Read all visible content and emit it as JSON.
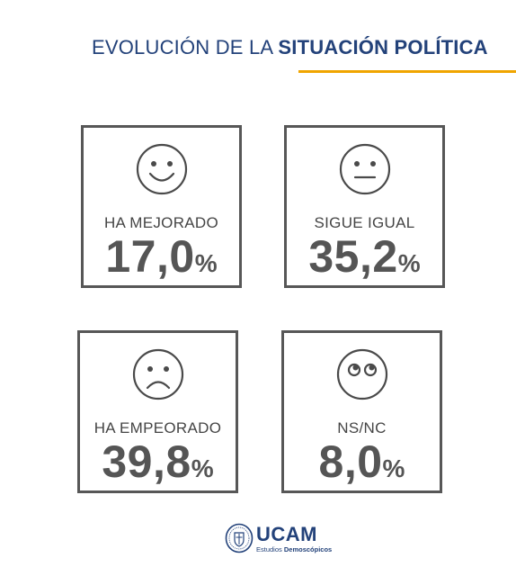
{
  "header": {
    "title_regular": "EVOLUCIÓN  DE LA ",
    "title_bold": "SITUACIÓN POLÍTICA"
  },
  "colors": {
    "title": "#23427a",
    "accent_rule": "#f0a500",
    "card_border": "#575757",
    "text": "#555555"
  },
  "chart_data": {
    "type": "table",
    "title": "EVOLUCIÓN  DE LA SITUACIÓN POLÍTICA",
    "categories": [
      "HA MEJORADO",
      "SIGUE IGUAL",
      "HA EMPEORADO",
      "NS/NC"
    ],
    "values": [
      17.0,
      35.2,
      39.8,
      8.0
    ],
    "unit": "%",
    "cards": [
      {
        "label": "HA MEJORADO",
        "value_text": "17,0",
        "unit": "%",
        "icon": "smiling-face-icon"
      },
      {
        "label": "SIGUE IGUAL",
        "value_text": "35,2",
        "unit": "%",
        "icon": "neutral-face-icon"
      },
      {
        "label": "HA EMPEORADO",
        "value_text": "39,8",
        "unit": "%",
        "icon": "sad-face-icon"
      },
      {
        "label": "NS/NC",
        "value_text": "8,0",
        "unit": "%",
        "icon": "eyes-up-face-icon"
      }
    ]
  },
  "footer": {
    "brand": "UCAM",
    "sub_regular": "Estudios ",
    "sub_bold": "Demoscópicos"
  }
}
